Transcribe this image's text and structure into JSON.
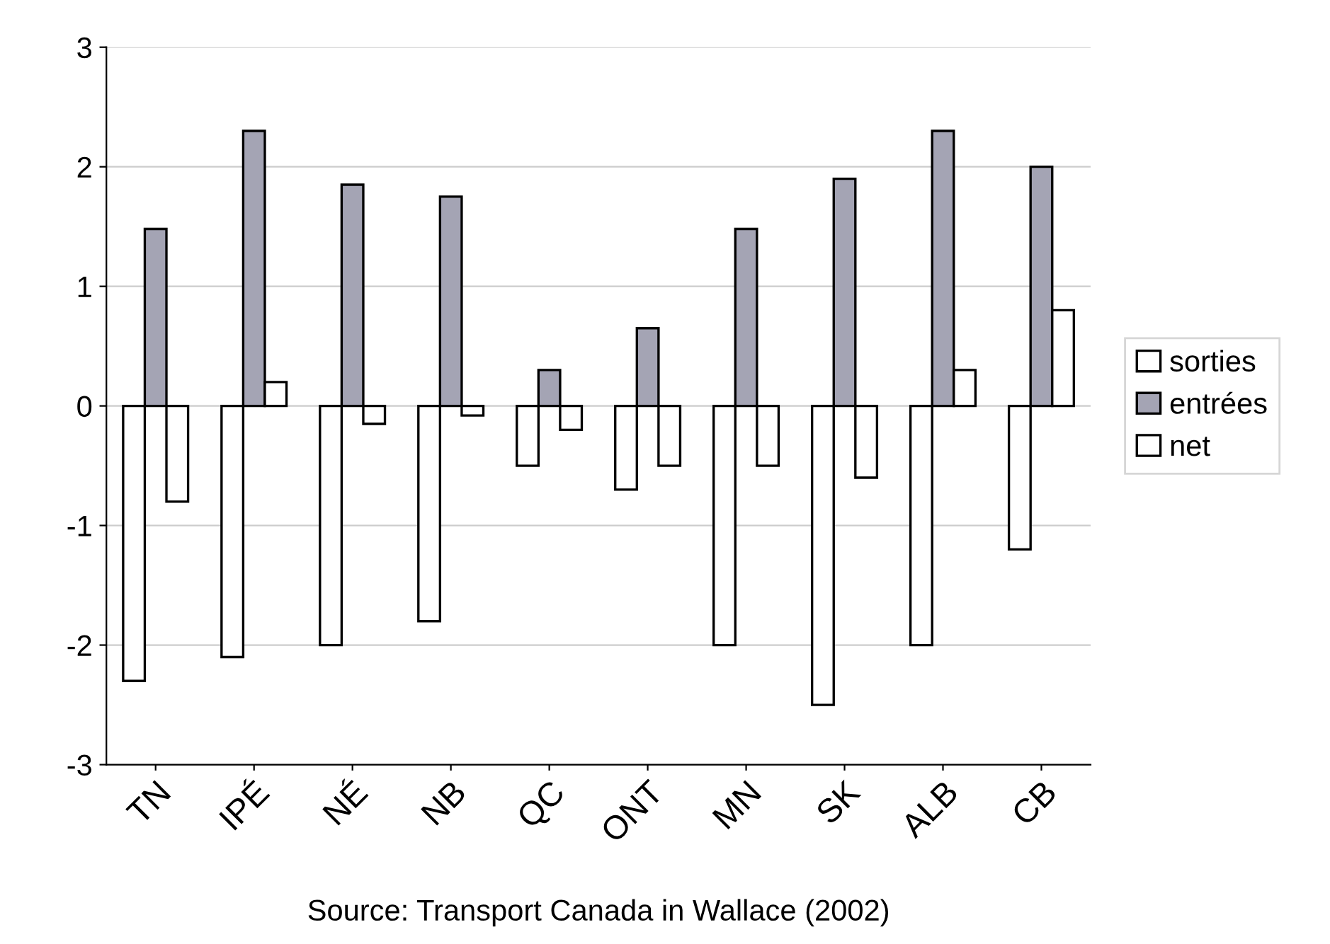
{
  "chart_data": {
    "type": "bar",
    "categories": [
      "TN",
      "IPÉ",
      "NÉ",
      "NB",
      "QC",
      "ONT",
      "MN",
      "SK",
      "ALB",
      "CB"
    ],
    "series": [
      {
        "name": "sorties",
        "color": "#ffffff",
        "values": [
          -2.3,
          -2.1,
          -2.0,
          -1.8,
          -0.5,
          -0.7,
          -2.0,
          -2.5,
          -2.0,
          -1.2
        ]
      },
      {
        "name": "entrées",
        "color": "#a4a4b4",
        "values": [
          1.48,
          2.3,
          1.85,
          1.75,
          0.3,
          0.65,
          1.48,
          1.9,
          2.3,
          2.0
        ]
      },
      {
        "name": "net",
        "color": "#ffffff",
        "values": [
          -0.8,
          0.2,
          -0.15,
          -0.08,
          -0.2,
          -0.5,
          -0.5,
          -0.6,
          0.3,
          0.8
        ]
      }
    ],
    "ylim": [
      -3,
      3
    ],
    "yticks": [
      -3,
      -2,
      -1,
      0,
      1,
      2,
      3
    ],
    "grid": "y",
    "legend": "right",
    "annotations": [
      "Source: Transport Canada in Wallace (2002)"
    ]
  }
}
